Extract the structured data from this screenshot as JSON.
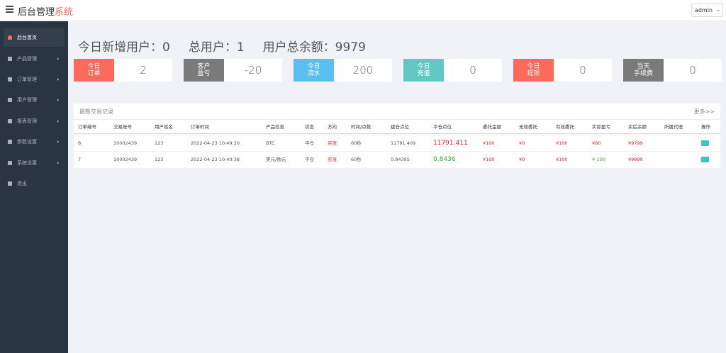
{
  "header": {
    "brand_main": "后台管理",
    "brand_accent": "系统",
    "user": "admin"
  },
  "sidebar": {
    "items": [
      "后台首页",
      "产品管理",
      "订单管理",
      "用户管理",
      "报表管理",
      "参数设置",
      "系统设置",
      "退出"
    ],
    "active": 0
  },
  "summary": [
    {
      "label": "今日新增用户：",
      "value": "0"
    },
    {
      "label": "总用户：",
      "value": "1"
    },
    {
      "label": "用户总余额：",
      "value": "9979"
    }
  ],
  "cards": [
    {
      "label": [
        "今日",
        "订单"
      ],
      "value": "2",
      "color": "#fb6b5b"
    },
    {
      "label": [
        "客户",
        "盈亏"
      ],
      "value": "-20",
      "color": "#7a7a7a"
    },
    {
      "label": [
        "今日",
        "流水"
      ],
      "value": "200",
      "color": "#5bc0f0"
    },
    {
      "label": [
        "今日",
        "充值"
      ],
      "value": "0",
      "color": "#62c8c4"
    },
    {
      "label": [
        "今日",
        "提现"
      ],
      "value": "0",
      "color": "#fb6b5b"
    },
    {
      "label": [
        "当天",
        "手续费"
      ],
      "value": "0",
      "color": "#7a7a7a"
    }
  ],
  "table": {
    "title": "最新交易记录",
    "more": "更多>>",
    "headers": [
      "订单编号",
      "交易账号",
      "用户姓名",
      "订单时间",
      "产品信息",
      "状态",
      "方向",
      "时间/点数",
      "建仓点位",
      "平仓点位",
      "委托金额",
      "无效委托",
      "有效委托",
      "实际盈亏",
      "买后余额",
      "所属代理",
      "操作"
    ],
    "rows": [
      {
        "cells": [
          "8",
          "10002439",
          "123",
          "2022-04-23 10:49:20",
          "BTC",
          "平仓",
          "买涨",
          "60秒",
          "11791.409",
          "11791.411",
          "¥100",
          "¥0",
          "¥100",
          "¥80",
          "¥9799"
        ],
        "close_color": "#e0262b",
        "profit_color": "#e0262b"
      },
      {
        "cells": [
          "7",
          "10002439",
          "123",
          "2022-04-23 10:40:38",
          "美元/欧元",
          "平仓",
          "买涨",
          "60秒",
          "0.84395",
          "0.8436",
          "¥100",
          "¥0",
          "¥100",
          "¥-100",
          "¥9899"
        ],
        "close_color": "#3aa63a",
        "profit_color": "#3aa63a"
      }
    ]
  }
}
